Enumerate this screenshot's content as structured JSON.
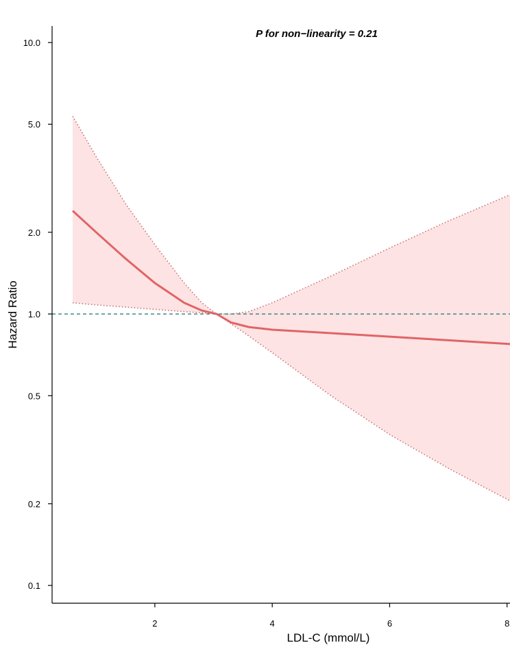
{
  "chart_data": {
    "type": "line",
    "annotation": "P for non−linearity = 0.21",
    "xlabel": "LDL-C (mmol/L)",
    "ylabel": "Hazard Ratio",
    "y_scale": "log",
    "xlim": [
      0.25,
      8.05
    ],
    "ylim": [
      0.086,
      11.5
    ],
    "x_ticks": [
      2,
      4,
      6,
      8
    ],
    "x_tick_labels": [
      "2",
      "4",
      "6",
      "8"
    ],
    "y_ticks": [
      0.1,
      0.2,
      0.5,
      1.0,
      2.0,
      5.0,
      10.0
    ],
    "y_tick_labels": [
      "0.1",
      "0.2",
      "0.5",
      "1.0",
      "2.0",
      "5.0",
      "10.0"
    ],
    "reference_line": 1.0,
    "colors": {
      "curve": "#e06466",
      "ci_fill": "#fde3e4",
      "ci_border": "#c9706f",
      "reference": "#2f7f7d",
      "axis": "#000000"
    },
    "series": [
      {
        "x": [
          0.6,
          1.0,
          1.5,
          2.0,
          2.5,
          2.8,
          3.05,
          3.3,
          3.6,
          4.0,
          5.0,
          6.0,
          7.0,
          8.05
        ],
        "y": [
          2.4,
          2.0,
          1.6,
          1.3,
          1.1,
          1.03,
          1.0,
          0.93,
          0.895,
          0.875,
          0.85,
          0.825,
          0.8,
          0.775
        ],
        "lower": [
          1.1,
          1.08,
          1.06,
          1.04,
          1.02,
          1.01,
          1.0,
          0.92,
          0.83,
          0.72,
          0.5,
          0.36,
          0.27,
          0.205
        ],
        "upper": [
          5.35,
          3.8,
          2.55,
          1.8,
          1.3,
          1.1,
          1.0,
          1.0,
          1.02,
          1.1,
          1.38,
          1.75,
          2.2,
          2.75
        ]
      }
    ]
  }
}
